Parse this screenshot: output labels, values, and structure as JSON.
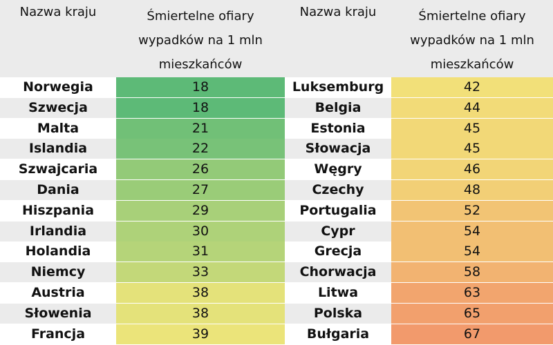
{
  "headers": {
    "country": "Nazwa kraju",
    "rate_lines": [
      "Śmiertelne ofiary",
      "wypadków na 1 mln",
      "mieszkańców"
    ]
  },
  "colors": {
    "header_bg": "#ebebeb",
    "stripe_bg": "#ebebeb",
    "scale_low": "#5dba77",
    "scale_mid": "#f2e67a",
    "scale_high": "#f29a6c"
  },
  "left_table": [
    {
      "country": "Norwegia",
      "value": "18"
    },
    {
      "country": "Szwecja",
      "value": "18"
    },
    {
      "country": "Malta",
      "value": "21"
    },
    {
      "country": "Islandia",
      "value": "22"
    },
    {
      "country": "Szwajcaria",
      "value": "26"
    },
    {
      "country": "Dania",
      "value": "27"
    },
    {
      "country": "Hiszpania",
      "value": "29"
    },
    {
      "country": "Irlandia",
      "value": "30"
    },
    {
      "country": "Holandia",
      "value": "31"
    },
    {
      "country": "Niemcy",
      "value": "33"
    },
    {
      "country": "Austria",
      "value": "38"
    },
    {
      "country": "Słowenia",
      "value": "38"
    },
    {
      "country": "Francja",
      "value": "39"
    }
  ],
  "right_table": [
    {
      "country": "Luksemburg",
      "value": "42"
    },
    {
      "country": "Belgia",
      "value": "44"
    },
    {
      "country": "Estonia",
      "value": "45"
    },
    {
      "country": "Słowacja",
      "value": "45"
    },
    {
      "country": "Węgry",
      "value": "46"
    },
    {
      "country": "Czechy",
      "value": "48"
    },
    {
      "country": "Portugalia",
      "value": "52"
    },
    {
      "country": "Cypr",
      "value": "54"
    },
    {
      "country": "Grecja",
      "value": "54"
    },
    {
      "country": "Chorwacja",
      "value": "58"
    },
    {
      "country": "Litwa",
      "value": "63"
    },
    {
      "country": "Polska",
      "value": "65"
    },
    {
      "country": "Bułgaria",
      "value": "67"
    }
  ]
}
